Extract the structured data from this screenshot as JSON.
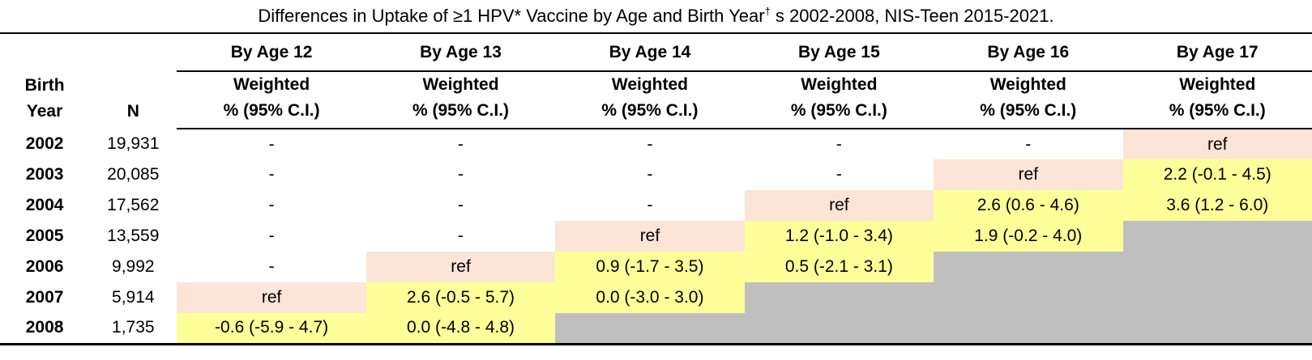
{
  "title": {
    "prefix": "Differences in Uptake of ≥1 HPV* Vaccine by Age and Birth Year",
    "superscript": "†",
    "suffix": " s 2002-2008, NIS-Teen 2015-2021."
  },
  "table": {
    "corner_header": {
      "line1": "Birth",
      "line2": "Year"
    },
    "n_header": "N",
    "age_headers": [
      "By Age 12",
      "By Age 13",
      "By Age 14",
      "By Age 15",
      "By Age 16",
      "By Age 17"
    ],
    "subheader": {
      "line1": "Weighted",
      "line2": "% (95% C.I.)"
    },
    "legend_semantics": {
      "ref": "reference group (pink)",
      "est": "weighted difference estimate (yellow)",
      "na": "not applicable (gray)",
      "none": "no data (dash)"
    },
    "colors": {
      "ref": "#FCE4D6",
      "est": "#FFFF99",
      "na": "#BFBFBF"
    },
    "rows": [
      {
        "birth_year": "2002",
        "n": "19,931",
        "cells": [
          {
            "text": "-",
            "bg": "none"
          },
          {
            "text": "-",
            "bg": "none"
          },
          {
            "text": "-",
            "bg": "none"
          },
          {
            "text": "-",
            "bg": "none"
          },
          {
            "text": "-",
            "bg": "none"
          },
          {
            "text": "ref",
            "bg": "ref"
          }
        ]
      },
      {
        "birth_year": "2003",
        "n": "20,085",
        "cells": [
          {
            "text": "-",
            "bg": "none"
          },
          {
            "text": "-",
            "bg": "none"
          },
          {
            "text": "-",
            "bg": "none"
          },
          {
            "text": "-",
            "bg": "none"
          },
          {
            "text": "ref",
            "bg": "ref"
          },
          {
            "text": "2.2 (-0.1 - 4.5)",
            "bg": "est"
          }
        ]
      },
      {
        "birth_year": "2004",
        "n": "17,562",
        "cells": [
          {
            "text": "-",
            "bg": "none"
          },
          {
            "text": "-",
            "bg": "none"
          },
          {
            "text": "-",
            "bg": "none"
          },
          {
            "text": "ref",
            "bg": "ref"
          },
          {
            "text": "2.6 (0.6 - 4.6)",
            "bg": "est"
          },
          {
            "text": "3.6 (1.2 - 6.0)",
            "bg": "est"
          }
        ]
      },
      {
        "birth_year": "2005",
        "n": "13,559",
        "cells": [
          {
            "text": "-",
            "bg": "none"
          },
          {
            "text": "-",
            "bg": "none"
          },
          {
            "text": "ref",
            "bg": "ref"
          },
          {
            "text": "1.2 (-1.0 - 3.4)",
            "bg": "est"
          },
          {
            "text": "1.9 (-0.2 - 4.0)",
            "bg": "est"
          },
          {
            "text": "",
            "bg": "na"
          }
        ]
      },
      {
        "birth_year": "2006",
        "n": "9,992",
        "cells": [
          {
            "text": "-",
            "bg": "none"
          },
          {
            "text": "ref",
            "bg": "ref"
          },
          {
            "text": "0.9 (-1.7 - 3.5)",
            "bg": "est"
          },
          {
            "text": "0.5 (-2.1 - 3.1)",
            "bg": "est"
          },
          {
            "text": "",
            "bg": "na"
          },
          {
            "text": "",
            "bg": "na"
          }
        ]
      },
      {
        "birth_year": "2007",
        "n": "5,914",
        "cells": [
          {
            "text": "ref",
            "bg": "ref"
          },
          {
            "text": "2.6 (-0.5 - 5.7)",
            "bg": "est"
          },
          {
            "text": "0.0 (-3.0 - 3.0)",
            "bg": "est"
          },
          {
            "text": "",
            "bg": "na"
          },
          {
            "text": "",
            "bg": "na"
          },
          {
            "text": "",
            "bg": "na"
          }
        ]
      },
      {
        "birth_year": "2008",
        "n": "1,735",
        "cells": [
          {
            "text": "-0.6 (-5.9 - 4.7)",
            "bg": "est"
          },
          {
            "text": "0.0 (-4.8 - 4.8)",
            "bg": "est"
          },
          {
            "text": "",
            "bg": "na"
          },
          {
            "text": "",
            "bg": "na"
          },
          {
            "text": "",
            "bg": "na"
          },
          {
            "text": "",
            "bg": "na"
          }
        ]
      }
    ]
  }
}
